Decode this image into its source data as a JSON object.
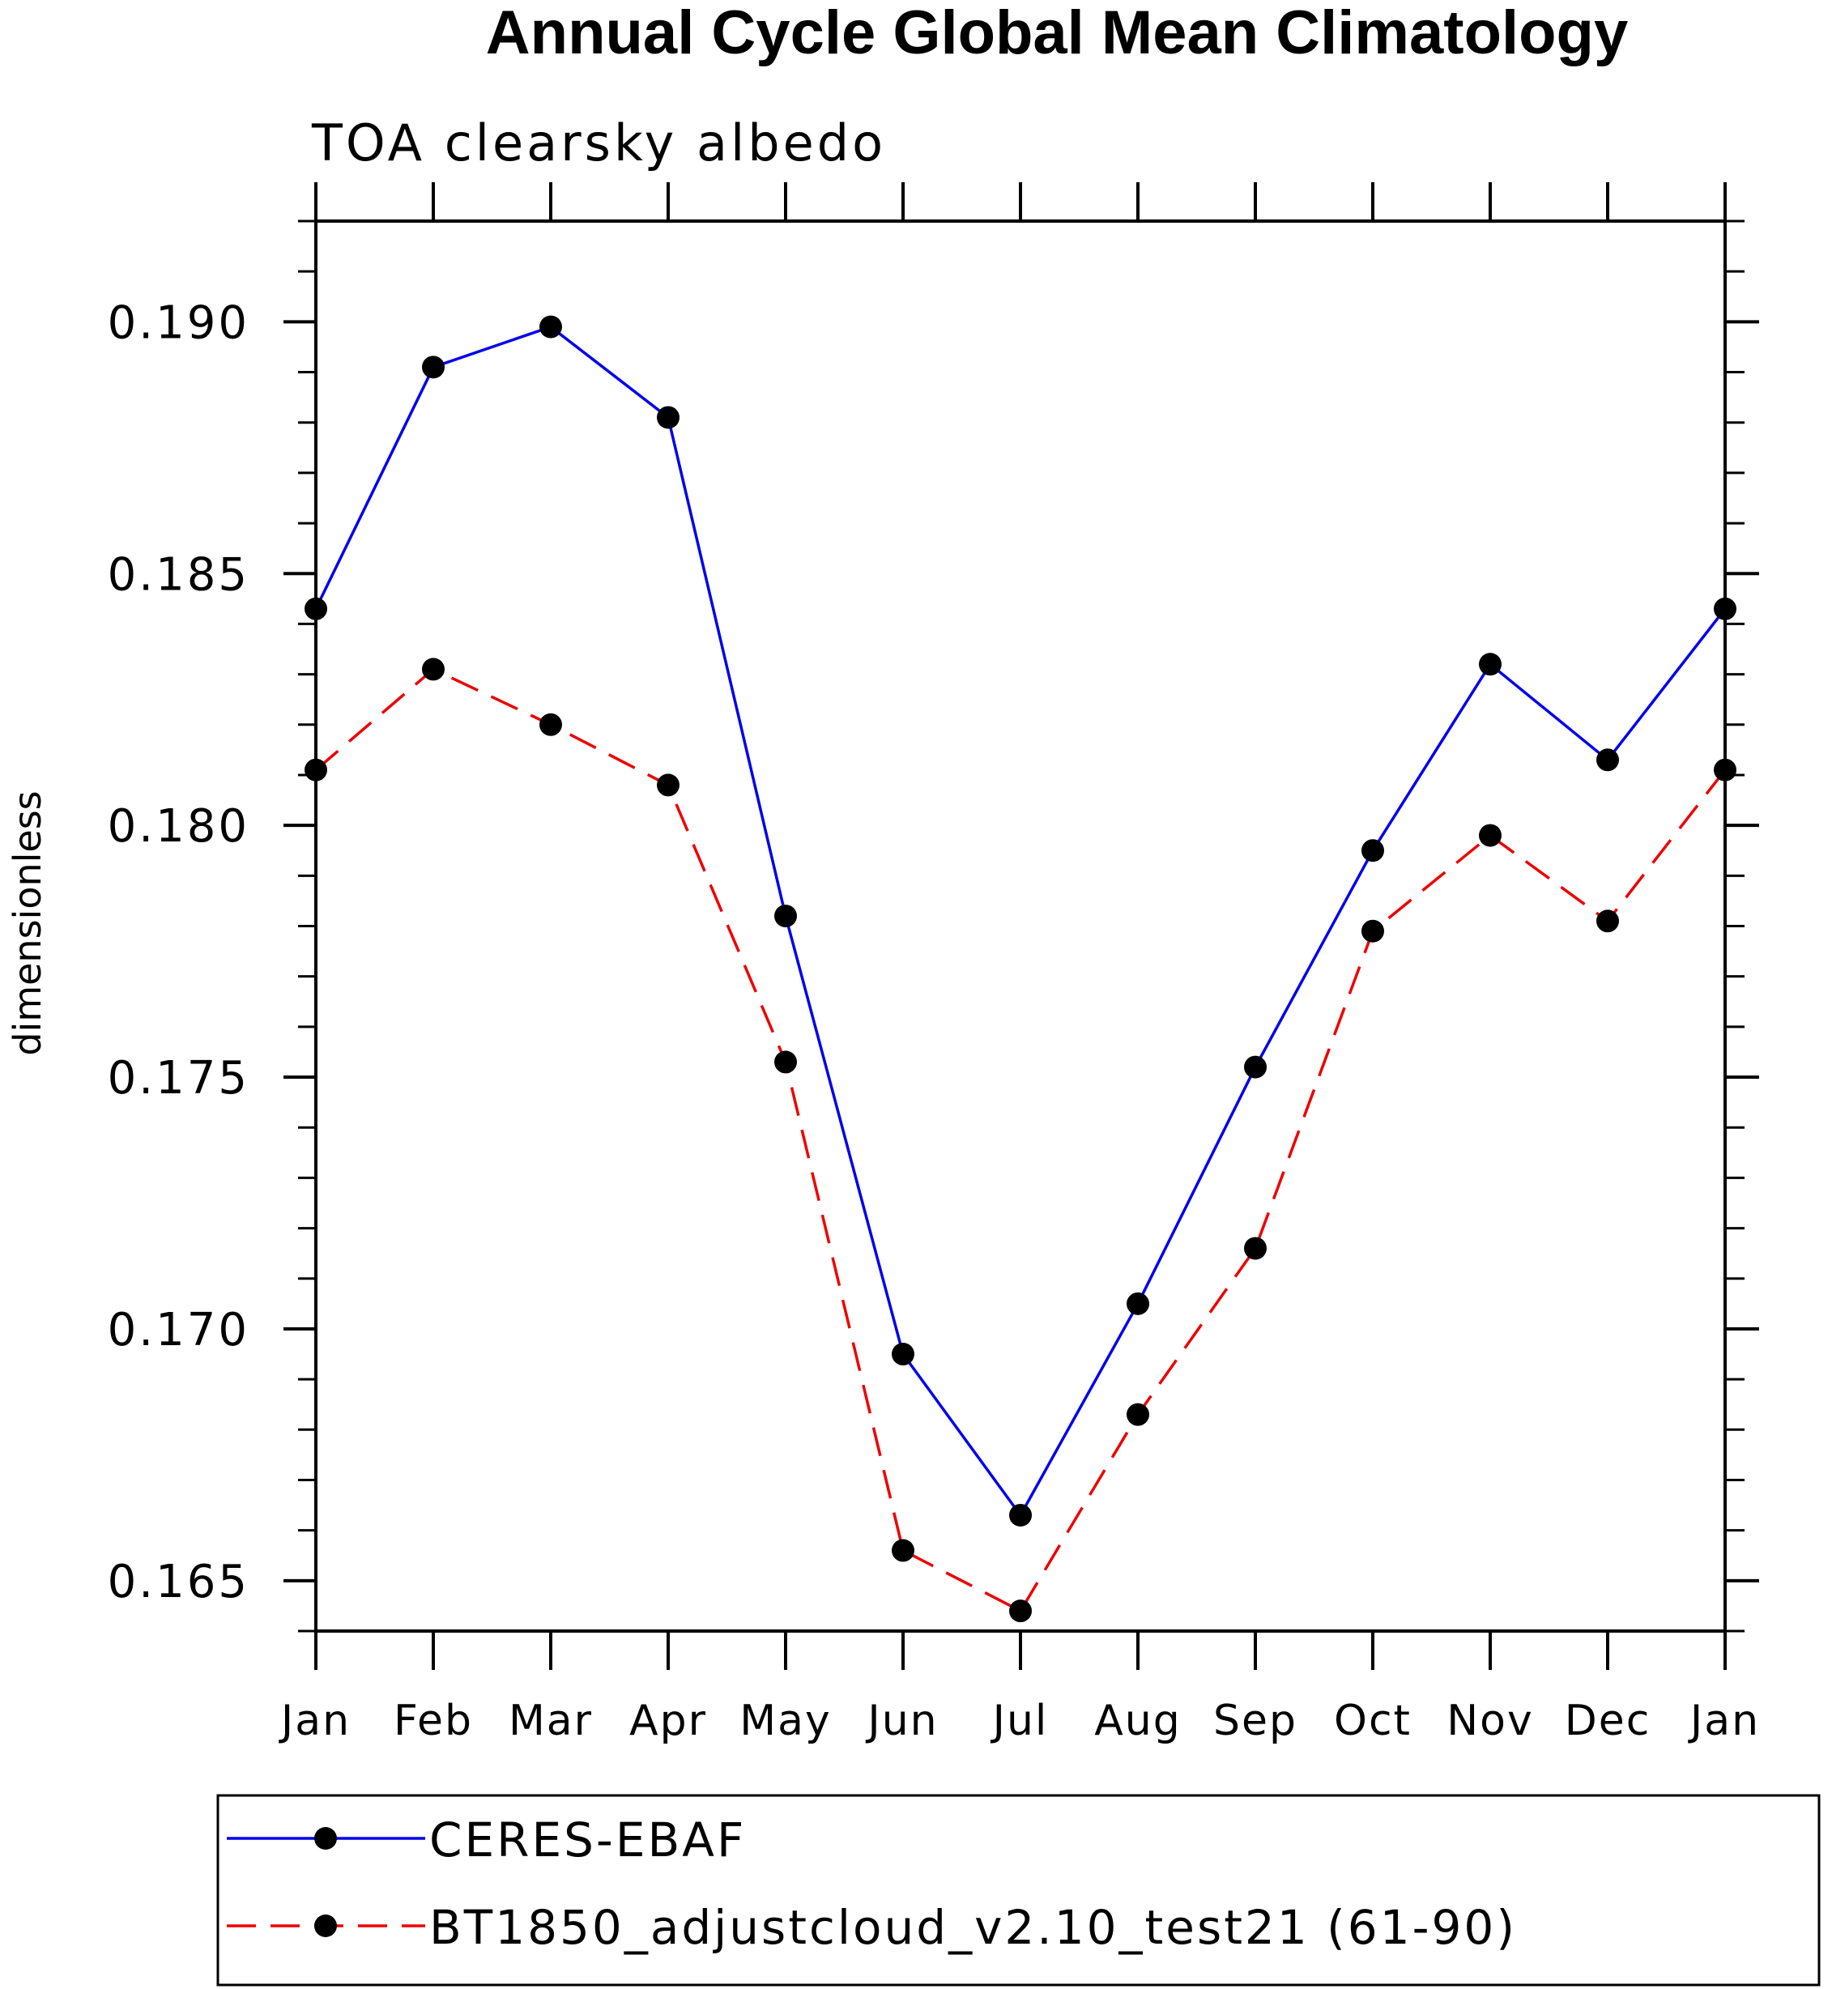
{
  "chart_data": {
    "type": "line",
    "title": "Annual Cycle Global Mean Climatology",
    "subtitle": "TOA clearsky albedo",
    "xlabel": "",
    "ylabel": "dimensionless",
    "categories": [
      "Jan",
      "Feb",
      "Mar",
      "Apr",
      "May",
      "Jun",
      "Jul",
      "Aug",
      "Sep",
      "Oct",
      "Nov",
      "Dec",
      "Jan"
    ],
    "ylim": [
      0.164,
      0.192
    ],
    "yticks": [
      {
        "value": 0.165,
        "label": "0.165"
      },
      {
        "value": 0.17,
        "label": "0.170"
      },
      {
        "value": 0.175,
        "label": "0.175"
      },
      {
        "value": 0.18,
        "label": "0.180"
      },
      {
        "value": 0.185,
        "label": "0.185"
      },
      {
        "value": 0.19,
        "label": "0.190"
      }
    ],
    "grid": false,
    "legend_position": "bottom",
    "series": [
      {
        "name": "CERES-EBAF",
        "color": "#0000ee",
        "dash": "solid",
        "marker": "filled-circle",
        "values": [
          0.1843,
          0.1891,
          0.1899,
          0.1881,
          0.1782,
          0.1695,
          0.1663,
          0.1705,
          0.1752,
          0.1795,
          0.1832,
          0.1813,
          0.1843
        ]
      },
      {
        "name": "BT1850_adjustcloud_v2.10_test21 (61-90)",
        "color": "#ee0000",
        "dash": "dashed",
        "marker": "filled-circle",
        "values": [
          0.1811,
          0.1831,
          0.182,
          0.1808,
          0.1753,
          0.1656,
          0.1644,
          0.1683,
          0.1716,
          0.1779,
          0.1798,
          0.1781,
          0.1811
        ]
      }
    ]
  }
}
